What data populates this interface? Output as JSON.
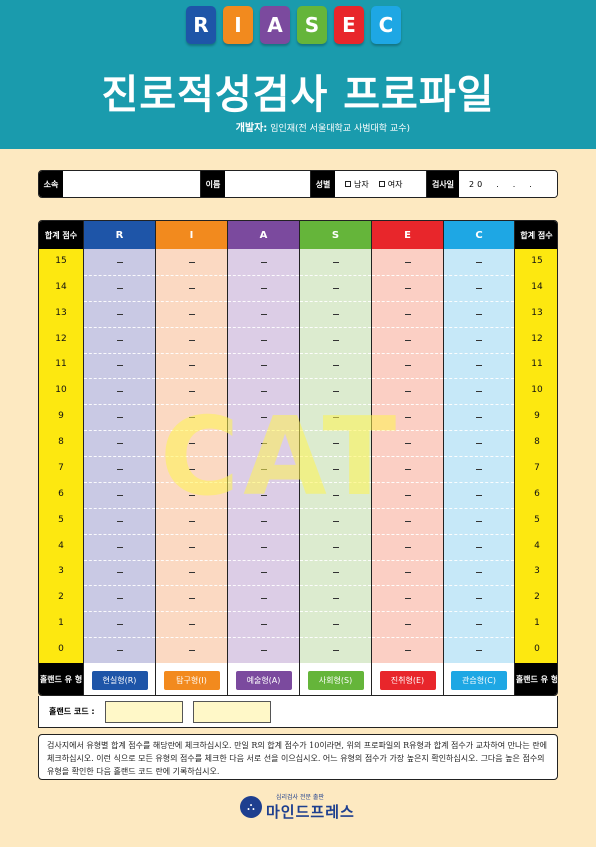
{
  "header": {
    "tiles": [
      {
        "letter": "R",
        "color": "#1e55a8"
      },
      {
        "letter": "I",
        "color": "#f28a1e"
      },
      {
        "letter": "A",
        "color": "#7b4a9e"
      },
      {
        "letter": "S",
        "color": "#65b53a"
      },
      {
        "letter": "E",
        "color": "#e8262b"
      },
      {
        "letter": "C",
        "color": "#1ea7e4"
      }
    ],
    "title": "진로적성검사 프로파일",
    "developer_label": "개발자:",
    "developer_name": "임인재(전 서울대학교 사범대학 교수)"
  },
  "info": {
    "affiliation_label": "소속",
    "name_label": "이름",
    "gender_label": "성별",
    "male": "남자",
    "female": "여자",
    "date_label": "검사일",
    "date_value": "20　.　.　."
  },
  "grid": {
    "score_header": "합계 점수",
    "footer_label": "홀랜드 유 형",
    "ticks": [
      "15",
      "14",
      "13",
      "12",
      "11",
      "10",
      "9",
      "8",
      "7",
      "6",
      "5",
      "4",
      "3",
      "2",
      "1",
      "0"
    ],
    "types": [
      {
        "letter": "R",
        "label": "현실형(R)",
        "color": "#1e55a8",
        "bg": "#c9c9e4",
        "pill": "#1e55a8"
      },
      {
        "letter": "I",
        "label": "탐구형(I)",
        "color": "#f28a1e",
        "bg": "#fbd9c2",
        "pill": "#f28a1e"
      },
      {
        "letter": "A",
        "label": "예술형(A)",
        "color": "#7b4a9e",
        "bg": "#dccde6",
        "pill": "#7b4a9e"
      },
      {
        "letter": "S",
        "label": "사회형(S)",
        "color": "#65b53a",
        "bg": "#dcebcf",
        "pill": "#65b53a"
      },
      {
        "letter": "E",
        "label": "진취형(E)",
        "color": "#e8262b",
        "bg": "#fbcfc4",
        "pill": "#e8262b"
      },
      {
        "letter": "C",
        "label": "관습형(C)",
        "color": "#1ea7e4",
        "bg": "#c6e8f8",
        "pill": "#1ea7e4"
      }
    ],
    "watermark": "CAT"
  },
  "holland": {
    "label": "홀랜드 코드 :"
  },
  "instructions": "검사지에서 유형별 합계 점수를 해당란에 체크하십시오. 만일 R의 합계 점수가 10이라면, 위의 프로파일의 R유형과 합계 점수가 교차하여 만나는 란에 체크하십시오. 이런 식으로 모든 유형의 점수를 체크한 다음 서로 선을 이으십시오. 어느 유형의 점수가 가장 높은지 확인하십시오. 그다음 높은 점수의 유형을 확인한 다음 홀랜드 코드 란에 기록하십시오.",
  "logo": {
    "sub": "심리검사 전문 출판",
    "main": "마인드프레스",
    "icon": "building-icon"
  }
}
